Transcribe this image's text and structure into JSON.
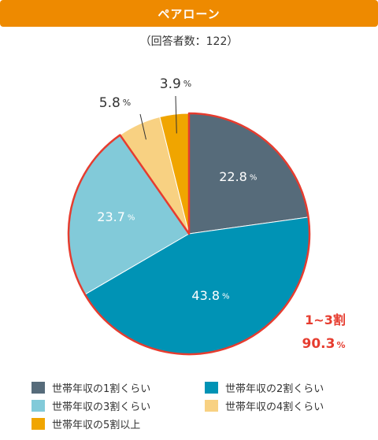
{
  "header": {
    "title": "ペアローン"
  },
  "subtitle": "（回答者数：122）",
  "chart_data": {
    "type": "pie",
    "unit": "%",
    "slices": [
      {
        "name": "世帯年収の1割くらい",
        "value": 22.8,
        "label": "22.8",
        "color": "#566b7a"
      },
      {
        "name": "世帯年収の2割くらい",
        "value": 43.8,
        "label": "43.8",
        "color": "#0093b5"
      },
      {
        "name": "世帯年収の3割くらい",
        "value": 23.7,
        "label": "23.7",
        "color": "#82cad9"
      },
      {
        "name": "世帯年収の4割くらい",
        "value": 5.8,
        "label": "5.8",
        "color": "#f8d182"
      },
      {
        "name": "世帯年収の5割以上",
        "value": 3.9,
        "label": "3.9",
        "color": "#f0a500"
      }
    ],
    "highlight": {
      "slices": [
        0,
        1,
        2
      ],
      "label": "1~3割",
      "value_label": "90.3",
      "color": "#e63c2f"
    }
  },
  "legend": {
    "items": [
      {
        "label": "世帯年収の1割くらい",
        "color": "#566b7a"
      },
      {
        "label": "世帯年収の2割くらい",
        "color": "#0093b5"
      },
      {
        "label": "世帯年収の3割くらい",
        "color": "#82cad9"
      },
      {
        "label": "世帯年収の4割くらい",
        "color": "#f8d182"
      },
      {
        "label": "世帯年収の5割以上",
        "color": "#f0a500"
      }
    ]
  }
}
